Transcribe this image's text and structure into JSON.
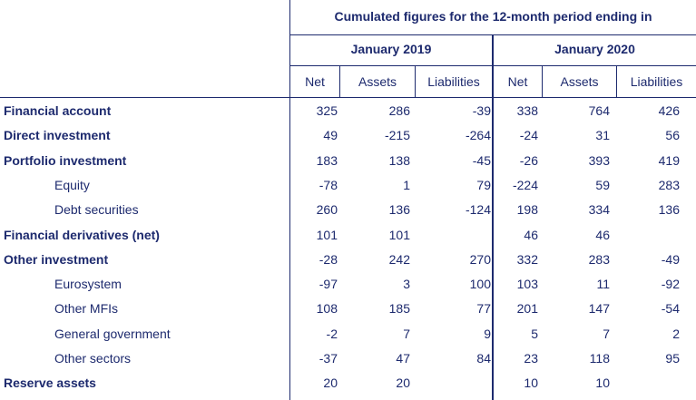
{
  "header": {
    "title": "Cumulated figures for the 12-month period ending in",
    "periods": [
      "January 2019",
      "January 2020"
    ],
    "columns": [
      "Net",
      "Assets",
      "Liabilities",
      "Net",
      "Assets",
      "Liabilities"
    ]
  },
  "rows": [
    {
      "label": "Financial account",
      "style": "bold",
      "values": [
        "325",
        "286",
        "-39",
        "338",
        "764",
        "426"
      ]
    },
    {
      "label": "Direct investment",
      "style": "bold",
      "values": [
        "49",
        "-215",
        "-264",
        "-24",
        "31",
        "56"
      ]
    },
    {
      "label": "Portfolio investment",
      "style": "bold",
      "values": [
        "183",
        "138",
        "-45",
        "-26",
        "393",
        "419"
      ]
    },
    {
      "label": "Equity",
      "style": "indent",
      "values": [
        "-78",
        "1",
        "79",
        "-224",
        "59",
        "283"
      ]
    },
    {
      "label": "Debt securities",
      "style": "indent",
      "values": [
        "260",
        "136",
        "-124",
        "198",
        "334",
        "136"
      ]
    },
    {
      "label": "Financial derivatives (net)",
      "style": "bold",
      "values": [
        "101",
        "101",
        "",
        "46",
        "46",
        ""
      ]
    },
    {
      "label": "Other investment",
      "style": "bold",
      "values": [
        "-28",
        "242",
        "270",
        "332",
        "283",
        "-49"
      ]
    },
    {
      "label": "Eurosystem",
      "style": "indent",
      "values": [
        "-97",
        "3",
        "100",
        "103",
        "11",
        "-92"
      ]
    },
    {
      "label": "Other MFIs",
      "style": "indent",
      "values": [
        "108",
        "185",
        "77",
        "201",
        "147",
        "-54"
      ]
    },
    {
      "label": "General government",
      "style": "indent",
      "values": [
        "-2",
        "7",
        "9",
        "5",
        "7",
        "2"
      ]
    },
    {
      "label": "Other sectors",
      "style": "indent",
      "values": [
        "-37",
        "47",
        "84",
        "23",
        "118",
        "95"
      ]
    },
    {
      "label": "Reserve assets",
      "style": "bold",
      "values": [
        "20",
        "20",
        "",
        "10",
        "10",
        ""
      ]
    }
  ]
}
